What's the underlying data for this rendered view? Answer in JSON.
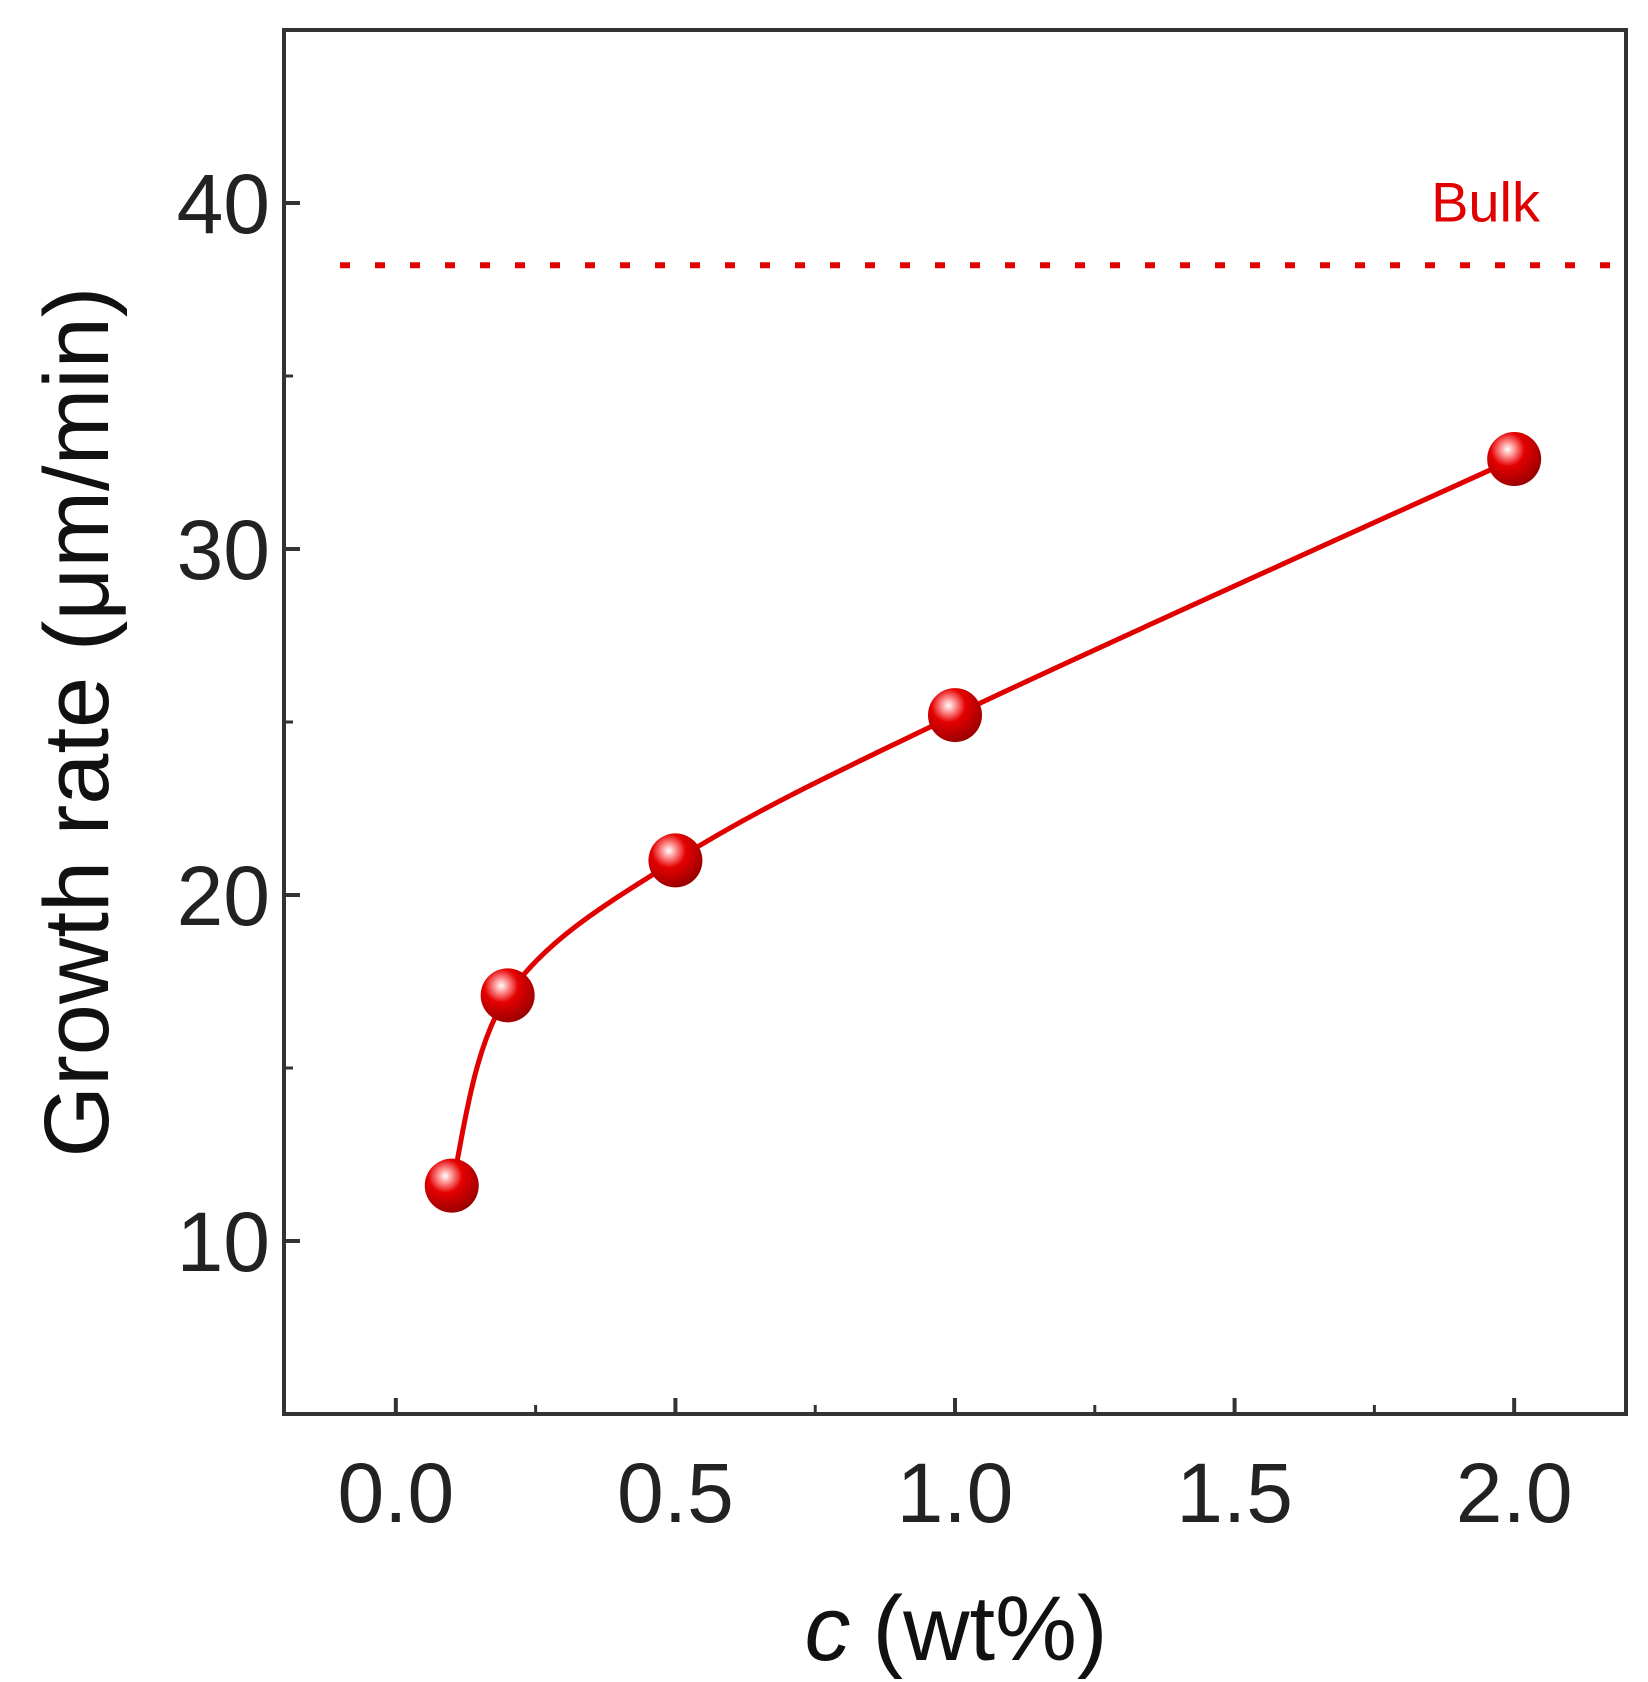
{
  "chart_data": {
    "type": "scatter",
    "x": [
      0.1,
      0.2,
      0.5,
      1.0,
      2.0
    ],
    "series": [
      {
        "values": [
          11.6,
          17.1,
          21.0,
          25.2,
          32.6
        ],
        "color": "#e00000",
        "marker": "sphere",
        "line": "smooth"
      }
    ],
    "xlabel_var": "c",
    "xlabel_unit": "(wt%)",
    "ylabel": "Growth rate (μm/min)",
    "xlim": [
      -0.2,
      2.2
    ],
    "ylim": [
      5,
      45
    ],
    "xticks": [
      0.0,
      0.5,
      1.0,
      1.5,
      2.0
    ],
    "xtick_labels": [
      "0.0",
      "0.5",
      "1.0",
      "1.5",
      "2.0"
    ],
    "yticks": [
      10,
      20,
      30,
      40
    ],
    "ytick_labels": [
      "10",
      "20",
      "30",
      "40"
    ],
    "reference_line": {
      "y": 38.2,
      "label": "Bulk",
      "style": "dotted",
      "color": "#e00000"
    },
    "grid": false,
    "legend": "none"
  }
}
